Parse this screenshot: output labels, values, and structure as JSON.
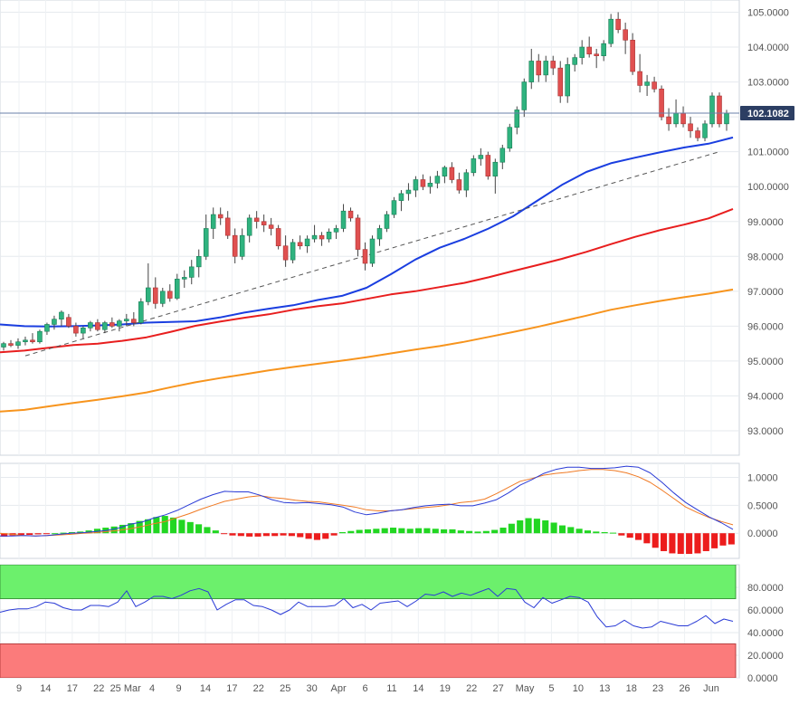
{
  "chart_data": {
    "type": "candlestick",
    "panels": [
      {
        "name": "price",
        "ylim": [
          92.3,
          105.35
        ],
        "yticks": [
          "93.0000",
          "94.0000",
          "95.0000",
          "96.0000",
          "97.0000",
          "98.0000",
          "99.0000",
          "100.0000",
          "101.0000",
          "102.0000",
          "103.0000",
          "104.0000",
          "105.0000"
        ],
        "last_price_label": "102.1082",
        "last_price": 102.1082,
        "candles": [
          [
            95.4,
            95.55,
            95.3,
            95.5
          ],
          [
            95.5,
            95.6,
            95.4,
            95.45
          ],
          [
            95.45,
            95.65,
            95.35,
            95.55
          ],
          [
            95.55,
            95.7,
            95.45,
            95.6
          ],
          [
            95.6,
            95.8,
            95.5,
            95.55
          ],
          [
            95.55,
            95.9,
            95.5,
            95.85
          ],
          [
            95.85,
            96.1,
            95.75,
            96.05
          ],
          [
            96.05,
            96.3,
            95.9,
            96.2
          ],
          [
            96.2,
            96.45,
            96.0,
            96.4
          ],
          [
            96.25,
            96.35,
            95.95,
            96.0
          ],
          [
            96.0,
            96.1,
            95.7,
            95.8
          ],
          [
            95.8,
            96.0,
            95.65,
            95.95
          ],
          [
            95.95,
            96.15,
            95.85,
            96.1
          ],
          [
            96.1,
            96.2,
            95.85,
            95.9
          ],
          [
            95.9,
            96.15,
            95.8,
            96.1
          ],
          [
            96.1,
            96.25,
            95.95,
            96.0
          ],
          [
            96.0,
            96.2,
            95.85,
            96.15
          ],
          [
            96.15,
            96.35,
            96.0,
            96.2
          ],
          [
            96.2,
            96.4,
            96.0,
            96.1
          ],
          [
            96.1,
            96.8,
            96.05,
            96.7
          ],
          [
            96.7,
            97.8,
            96.6,
            97.1
          ],
          [
            97.1,
            97.4,
            96.5,
            96.65
          ],
          [
            96.65,
            97.1,
            96.55,
            97.0
          ],
          [
            97.0,
            97.2,
            96.7,
            96.8
          ],
          [
            96.8,
            97.5,
            96.75,
            97.35
          ],
          [
            97.35,
            97.6,
            97.1,
            97.4
          ],
          [
            97.4,
            97.9,
            97.2,
            97.7
          ],
          [
            97.7,
            98.2,
            97.4,
            98.0
          ],
          [
            98.0,
            99.2,
            97.9,
            98.8
          ],
          [
            98.8,
            99.4,
            98.5,
            99.2
          ],
          [
            99.2,
            99.4,
            98.9,
            99.1
          ],
          [
            99.1,
            99.3,
            98.5,
            98.6
          ],
          [
            98.6,
            98.8,
            97.8,
            98.0
          ],
          [
            98.0,
            98.8,
            97.9,
            98.6
          ],
          [
            98.6,
            99.2,
            98.4,
            99.1
          ],
          [
            99.1,
            99.3,
            98.8,
            99.0
          ],
          [
            99.0,
            99.2,
            98.7,
            98.9
          ],
          [
            98.9,
            99.1,
            98.6,
            98.8
          ],
          [
            98.8,
            98.9,
            98.2,
            98.3
          ],
          [
            98.3,
            98.6,
            97.7,
            97.9
          ],
          [
            97.9,
            98.5,
            97.8,
            98.4
          ],
          [
            98.4,
            98.6,
            98.2,
            98.3
          ],
          [
            98.3,
            98.6,
            98.1,
            98.5
          ],
          [
            98.5,
            98.9,
            98.4,
            98.6
          ],
          [
            98.6,
            98.7,
            98.3,
            98.5
          ],
          [
            98.5,
            98.8,
            98.4,
            98.7
          ],
          [
            98.7,
            98.9,
            98.5,
            98.8
          ],
          [
            98.8,
            99.5,
            98.7,
            99.3
          ],
          [
            99.3,
            99.4,
            99.0,
            99.1
          ],
          [
            99.1,
            99.2,
            98.0,
            98.2
          ],
          [
            98.2,
            98.4,
            97.6,
            97.8
          ],
          [
            97.8,
            98.6,
            97.7,
            98.5
          ],
          [
            98.5,
            98.9,
            98.3,
            98.8
          ],
          [
            98.8,
            99.3,
            98.7,
            99.2
          ],
          [
            99.2,
            99.7,
            99.1,
            99.6
          ],
          [
            99.6,
            99.9,
            99.3,
            99.8
          ],
          [
            99.8,
            100.1,
            99.6,
            99.9
          ],
          [
            99.9,
            100.3,
            99.7,
            100.2
          ],
          [
            100.2,
            100.35,
            99.9,
            100.0
          ],
          [
            100.0,
            100.3,
            99.8,
            100.1
          ],
          [
            100.1,
            100.45,
            99.95,
            100.3
          ],
          [
            100.3,
            100.6,
            100.1,
            100.55
          ],
          [
            100.55,
            100.7,
            100.1,
            100.2
          ],
          [
            100.2,
            100.4,
            99.8,
            99.9
          ],
          [
            99.9,
            100.5,
            99.7,
            100.4
          ],
          [
            100.4,
            100.9,
            100.3,
            100.8
          ],
          [
            100.8,
            101.1,
            100.6,
            100.9
          ],
          [
            100.9,
            101.0,
            100.2,
            100.3
          ],
          [
            100.3,
            100.8,
            99.8,
            100.7
          ],
          [
            100.7,
            101.2,
            100.5,
            101.1
          ],
          [
            101.1,
            101.8,
            101.0,
            101.7
          ],
          [
            101.7,
            102.3,
            101.5,
            102.2
          ],
          [
            102.2,
            103.1,
            102.0,
            103.0
          ],
          [
            103.0,
            103.95,
            102.8,
            103.6
          ],
          [
            103.6,
            103.8,
            103.0,
            103.2
          ],
          [
            103.2,
            103.75,
            103.0,
            103.6
          ],
          [
            103.6,
            103.75,
            103.2,
            103.4
          ],
          [
            103.4,
            103.6,
            102.4,
            102.6
          ],
          [
            102.6,
            103.7,
            102.4,
            103.5
          ],
          [
            103.5,
            103.8,
            103.3,
            103.7
          ],
          [
            103.7,
            104.2,
            103.5,
            104.0
          ],
          [
            104.0,
            104.3,
            103.7,
            103.8
          ],
          [
            103.8,
            103.95,
            103.4,
            103.75
          ],
          [
            103.75,
            104.2,
            103.6,
            104.1
          ],
          [
            104.1,
            104.95,
            104.0,
            104.8
          ],
          [
            104.8,
            105.0,
            104.4,
            104.5
          ],
          [
            104.5,
            104.7,
            103.8,
            104.2
          ],
          [
            104.2,
            104.4,
            103.2,
            103.3
          ],
          [
            103.3,
            103.8,
            102.7,
            102.9
          ],
          [
            102.9,
            103.2,
            102.6,
            103.0
          ],
          [
            103.0,
            103.15,
            102.7,
            102.8
          ],
          [
            102.8,
            102.9,
            101.9,
            102.0
          ],
          [
            102.0,
            102.25,
            101.6,
            101.8
          ],
          [
            101.8,
            102.5,
            101.7,
            102.1
          ],
          [
            102.1,
            102.3,
            101.7,
            101.8
          ],
          [
            101.8,
            102.0,
            101.4,
            101.6
          ],
          [
            101.6,
            101.7,
            101.3,
            101.4
          ],
          [
            101.4,
            101.9,
            101.3,
            101.8
          ],
          [
            101.8,
            102.7,
            101.7,
            102.6
          ],
          [
            102.6,
            102.7,
            101.7,
            101.8
          ],
          [
            101.8,
            102.2,
            101.6,
            102.1
          ]
        ],
        "moving_averages": [
          {
            "color": "#1a3ee0",
            "values": [
              96.05,
              96.0,
              95.99,
              96.0,
              96.02,
              96.05,
              96.1,
              96.12,
              96.14,
              96.25,
              96.39,
              96.5,
              96.6,
              96.75,
              96.87,
              97.1,
              97.49,
              97.91,
              98.25,
              98.5,
              98.8,
              99.15,
              99.6,
              100.05,
              100.42,
              100.67,
              100.83,
              100.98,
              101.12,
              101.23,
              101.41
            ]
          },
          {
            "color": "#e81e1e",
            "values": [
              95.25,
              95.3,
              95.38,
              95.46,
              95.5,
              95.58,
              95.68,
              95.84,
              96.01,
              96.13,
              96.24,
              96.34,
              96.47,
              96.57,
              96.65,
              96.78,
              96.91,
              97.0,
              97.12,
              97.24,
              97.4,
              97.58,
              97.75,
              97.93,
              98.13,
              98.35,
              98.56,
              98.75,
              98.91,
              99.09,
              99.36
            ]
          },
          {
            "color": "#f7941d",
            "values": [
              93.55,
              93.6,
              93.7,
              93.8,
              93.89,
              93.99,
              94.1,
              94.25,
              94.39,
              94.51,
              94.62,
              94.73,
              94.83,
              94.92,
              95.01,
              95.11,
              95.22,
              95.33,
              95.43,
              95.55,
              95.69,
              95.83,
              95.98,
              96.14,
              96.3,
              96.47,
              96.6,
              96.72,
              96.83,
              96.93,
              97.05
            ]
          }
        ],
        "trendline": {
          "x": [
            3,
            99
          ],
          "y": [
            95.15,
            101.0
          ],
          "color": "#555555",
          "style": "dashed"
        }
      },
      {
        "name": "macd",
        "ylim": [
          -0.45,
          1.25
        ],
        "yticks": [
          "0.0000",
          "0.5000",
          "1.0000"
        ],
        "histogram": [
          -0.06,
          -0.04,
          -0.03,
          -0.03,
          -0.02,
          -0.01,
          0.0,
          0.01,
          0.02,
          0.03,
          0.05,
          0.08,
          0.1,
          0.12,
          0.15,
          0.18,
          0.22,
          0.25,
          0.29,
          0.31,
          0.28,
          0.24,
          0.2,
          0.16,
          0.11,
          0.05,
          -0.01,
          -0.04,
          -0.05,
          -0.06,
          -0.06,
          -0.05,
          -0.05,
          -0.04,
          -0.05,
          -0.07,
          -0.1,
          -0.12,
          -0.1,
          -0.04,
          0.02,
          0.04,
          0.06,
          0.07,
          0.08,
          0.09,
          0.1,
          0.09,
          0.08,
          0.09,
          0.09,
          0.08,
          0.07,
          0.07,
          0.05,
          0.04,
          0.03,
          0.04,
          0.06,
          0.1,
          0.17,
          0.23,
          0.27,
          0.26,
          0.23,
          0.19,
          0.14,
          0.11,
          0.08,
          0.05,
          0.03,
          0.02,
          0.01,
          -0.04,
          -0.08,
          -0.12,
          -0.18,
          -0.26,
          -0.32,
          -0.36,
          -0.37,
          -0.37,
          -0.36,
          -0.32,
          -0.27,
          -0.22,
          -0.2
        ],
        "macd_line": {
          "color": "#2a3bd6",
          "values": [
            -0.05,
            -0.05,
            -0.04,
            -0.05,
            -0.04,
            -0.02,
            0.0,
            0.01,
            0.03,
            0.05,
            0.09,
            0.16,
            0.2,
            0.27,
            0.33,
            0.41,
            0.51,
            0.61,
            0.69,
            0.75,
            0.74,
            0.74,
            0.68,
            0.6,
            0.55,
            0.54,
            0.55,
            0.53,
            0.51,
            0.47,
            0.38,
            0.33,
            0.36,
            0.4,
            0.42,
            0.46,
            0.49,
            0.51,
            0.52,
            0.49,
            0.49,
            0.54,
            0.6,
            0.72,
            0.86,
            0.96,
            1.07,
            1.14,
            1.18,
            1.18,
            1.16,
            1.16,
            1.17,
            1.2,
            1.18,
            1.08,
            0.91,
            0.72,
            0.55,
            0.42,
            0.29,
            0.19,
            0.07
          ]
        },
        "signal_line": {
          "color": "#f07a24",
          "values": [
            0.0,
            -0.02,
            -0.04,
            -0.05,
            -0.04,
            -0.03,
            -0.02,
            0.0,
            0.01,
            0.03,
            0.05,
            0.08,
            0.12,
            0.17,
            0.21,
            0.28,
            0.35,
            0.43,
            0.5,
            0.57,
            0.61,
            0.65,
            0.67,
            0.64,
            0.62,
            0.59,
            0.57,
            0.56,
            0.53,
            0.5,
            0.47,
            0.42,
            0.4,
            0.4,
            0.42,
            0.44,
            0.46,
            0.48,
            0.51,
            0.55,
            0.57,
            0.61,
            0.71,
            0.82,
            0.93,
            0.98,
            1.04,
            1.07,
            1.09,
            1.12,
            1.14,
            1.14,
            1.12,
            1.08,
            1.01,
            0.91,
            0.77,
            0.62,
            0.47,
            0.37,
            0.28,
            0.21,
            0.15
          ]
        }
      },
      {
        "name": "rsi",
        "ylim": [
          0,
          100
        ],
        "yticks": [
          "0.0000",
          "20.0000",
          "40.0000",
          "60.0000",
          "80.0000"
        ],
        "overbought": [
          70,
          100
        ],
        "oversold": [
          0,
          30
        ],
        "rsi_line": {
          "color": "#2a3bd6",
          "values": [
            58,
            60,
            61,
            61,
            63,
            67,
            66,
            62,
            60,
            60,
            64,
            64,
            63,
            67,
            77,
            63,
            67,
            72,
            72,
            70,
            73,
            77,
            79,
            76,
            60,
            65,
            69,
            69,
            64,
            63,
            60,
            56,
            60,
            67,
            63,
            63,
            63,
            64,
            70,
            62,
            65,
            60,
            66,
            67,
            68,
            63,
            68,
            74,
            73,
            76,
            72,
            75,
            73,
            76,
            79,
            72,
            79,
            78,
            67,
            62,
            71,
            66,
            69,
            72,
            71,
            67,
            54,
            45,
            46,
            51,
            46,
            44,
            45,
            50,
            48,
            46,
            46,
            50,
            55,
            48,
            52,
            50
          ]
        }
      }
    ],
    "x_tick_labels": [
      "9",
      "14",
      "17",
      "22",
      "25 Mar",
      "4",
      "9",
      "14",
      "17",
      "22",
      "25",
      "30",
      "Apr",
      "6",
      "11",
      "14",
      "19",
      "22",
      "27",
      "May",
      "5",
      "10",
      "13",
      "18",
      "23",
      "26",
      "Jun"
    ]
  }
}
